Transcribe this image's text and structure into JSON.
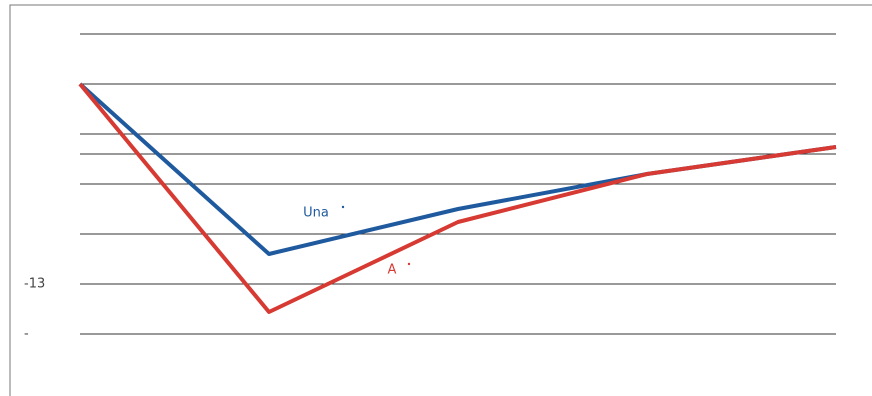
{
  "chart_data": {
    "type": "line",
    "categories": [
      null,
      null,
      null,
      null,
      null
    ],
    "series": [
      {
        "name": "Una",
        "color": "#1f5a9e",
        "values": [
          7,
          -10,
          -5.5,
          -2,
          0.7
        ]
      },
      {
        "name": "A",
        "color": "#d63a32",
        "values": [
          7,
          -15.8,
          -6.8,
          -2,
          0.7
        ]
      }
    ],
    "ylim": [
      -24.2,
      14.9
    ],
    "yticks": [
      -13,
      {
        "value": -18,
        "label": "-"
      }
    ],
    "grid_lines": [
      12,
      7,
      2,
      0,
      -3,
      -8,
      -13,
      -18
    ],
    "grid": true
  }
}
